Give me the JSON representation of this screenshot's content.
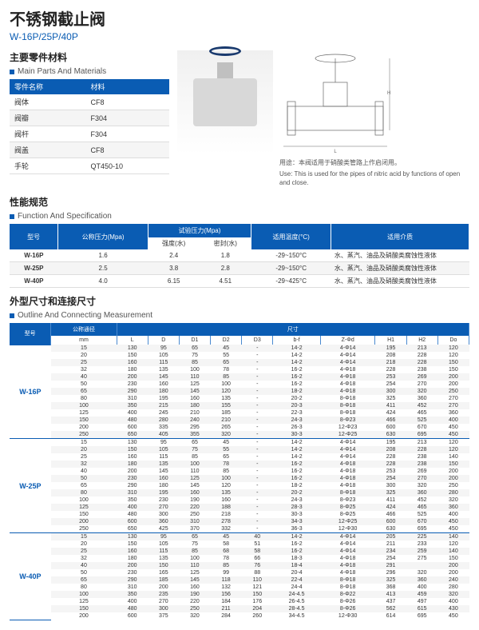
{
  "title_cn": "不锈钢截止阀",
  "title_en": "W-16P/25P/40P",
  "sec1_cn": "主要零件材料",
  "sec1_en": "Main Parts And Materials",
  "mat_h1": "零件名称",
  "mat_h2": "材料",
  "mat": [
    [
      "阀体",
      "CF8"
    ],
    [
      "阀瓣",
      "F304"
    ],
    [
      "阀杆",
      "F304"
    ],
    [
      "阀盖",
      "CF8"
    ],
    [
      "手轮",
      "QT450-10"
    ]
  ],
  "use_cn": "用途：本阀适用于硝酸类管路上作启闭用。",
  "use_en": "Use: This is used for the pipes of nitric acid by functions of open and close.",
  "sec2_cn": "性能规范",
  "sec2_en": "Function And Specification",
  "spec_h": [
    "型号",
    "公称压力(Mpa)",
    "试验压力(Mpa)",
    "适用温度(°C)",
    "适用介质"
  ],
  "spec_sub": [
    "强度(水)",
    "密封(水)"
  ],
  "spec": [
    [
      "W-16P",
      "1.6",
      "2.4",
      "1.8",
      "-29~150°C",
      "水、蒸汽、油品及硝酸类腐蚀性液体"
    ],
    [
      "W-25P",
      "2.5",
      "3.8",
      "2.8",
      "-29~150°C",
      "水、蒸汽、油品及硝酸类腐蚀性液体"
    ],
    [
      "W-40P",
      "4.0",
      "6.15",
      "4.51",
      "-29~425°C",
      "水、蒸汽、油品及硝酸类腐蚀性液体"
    ]
  ],
  "sec3_cn": "外型尺寸和连接尺寸",
  "sec3_en": "Outline And Connecting Measurement",
  "dim_h1": "型号",
  "dim_h2": "公称通径",
  "dim_h3": "尺寸",
  "dim_sub": [
    "mm",
    "L",
    "D",
    "D1",
    "D2",
    "D3",
    "b-f",
    "Z-Φd",
    "H1",
    "H2",
    "Do"
  ],
  "groups": [
    {
      "model": "W-16P",
      "rows": [
        [
          "15",
          "130",
          "95",
          "65",
          "45",
          "-",
          "14-2",
          "4-Φ14",
          "195",
          "213",
          "120"
        ],
        [
          "20",
          "150",
          "105",
          "75",
          "55",
          "-",
          "14-2",
          "4-Φ14",
          "208",
          "228",
          "120"
        ],
        [
          "25",
          "160",
          "115",
          "85",
          "65",
          "-",
          "14-2",
          "4-Φ14",
          "218",
          "228",
          "150"
        ],
        [
          "32",
          "180",
          "135",
          "100",
          "78",
          "-",
          "16-2",
          "4-Φ18",
          "228",
          "238",
          "150"
        ],
        [
          "40",
          "200",
          "145",
          "110",
          "85",
          "-",
          "16-2",
          "4-Φ18",
          "253",
          "269",
          "200"
        ],
        [
          "50",
          "230",
          "160",
          "125",
          "100",
          "-",
          "16-2",
          "4-Φ18",
          "254",
          "270",
          "200"
        ],
        [
          "65",
          "290",
          "180",
          "145",
          "120",
          "-",
          "18-2",
          "4-Φ18",
          "300",
          "320",
          "250"
        ],
        [
          "80",
          "310",
          "195",
          "160",
          "135",
          "-",
          "20-2",
          "8-Φ18",
          "325",
          "360",
          "270"
        ],
        [
          "100",
          "350",
          "215",
          "180",
          "155",
          "-",
          "20-3",
          "8-Φ18",
          "411",
          "452",
          "270"
        ],
        [
          "125",
          "400",
          "245",
          "210",
          "185",
          "-",
          "22-3",
          "8-Φ18",
          "424",
          "465",
          "360"
        ],
        [
          "150",
          "480",
          "280",
          "240",
          "210",
          "-",
          "24-3",
          "8-Φ23",
          "466",
          "525",
          "400"
        ],
        [
          "200",
          "600",
          "335",
          "295",
          "265",
          "-",
          "26-3",
          "12-Φ23",
          "600",
          "670",
          "450"
        ],
        [
          "250",
          "650",
          "405",
          "355",
          "320",
          "-",
          "30-3",
          "12-Φ25",
          "630",
          "695",
          "450"
        ]
      ]
    },
    {
      "model": "W-25P",
      "rows": [
        [
          "15",
          "130",
          "95",
          "65",
          "45",
          "-",
          "14-2",
          "4-Φ14",
          "195",
          "213",
          "120"
        ],
        [
          "20",
          "150",
          "105",
          "75",
          "55",
          "-",
          "14-2",
          "4-Φ14",
          "208",
          "228",
          "120"
        ],
        [
          "25",
          "160",
          "115",
          "85",
          "65",
          "-",
          "14-2",
          "4-Φ14",
          "228",
          "238",
          "140"
        ],
        [
          "32",
          "180",
          "135",
          "100",
          "78",
          "-",
          "16-2",
          "4-Φ18",
          "228",
          "238",
          "150"
        ],
        [
          "40",
          "200",
          "145",
          "110",
          "85",
          "-",
          "16-2",
          "4-Φ18",
          "253",
          "269",
          "200"
        ],
        [
          "50",
          "230",
          "160",
          "125",
          "100",
          "-",
          "16-2",
          "4-Φ18",
          "254",
          "270",
          "200"
        ],
        [
          "65",
          "290",
          "180",
          "145",
          "120",
          "-",
          "18-2",
          "4-Φ18",
          "300",
          "320",
          "250"
        ],
        [
          "80",
          "310",
          "195",
          "160",
          "135",
          "-",
          "20-2",
          "8-Φ18",
          "325",
          "360",
          "280"
        ],
        [
          "100",
          "350",
          "230",
          "190",
          "160",
          "-",
          "24-3",
          "8-Φ23",
          "411",
          "452",
          "320"
        ],
        [
          "125",
          "400",
          "270",
          "220",
          "188",
          "-",
          "28-3",
          "8-Φ25",
          "424",
          "465",
          "360"
        ],
        [
          "150",
          "480",
          "300",
          "250",
          "218",
          "-",
          "30-3",
          "8-Φ25",
          "466",
          "525",
          "400"
        ],
        [
          "200",
          "600",
          "360",
          "310",
          "278",
          "-",
          "34-3",
          "12-Φ25",
          "600",
          "670",
          "450"
        ],
        [
          "250",
          "650",
          "425",
          "370",
          "332",
          "-",
          "36-3",
          "12-Φ30",
          "630",
          "695",
          "450"
        ]
      ]
    },
    {
      "model": "W-40P",
      "rows": [
        [
          "15",
          "130",
          "95",
          "65",
          "45",
          "40",
          "14-2",
          "4-Φ14",
          "205",
          "225",
          "140"
        ],
        [
          "20",
          "150",
          "105",
          "75",
          "58",
          "51",
          "16-2",
          "4-Φ14",
          "211",
          "233",
          "120"
        ],
        [
          "25",
          "160",
          "115",
          "85",
          "68",
          "58",
          "16-2",
          "4-Φ14",
          "234",
          "259",
          "140"
        ],
        [
          "32",
          "180",
          "135",
          "100",
          "78",
          "66",
          "18-3",
          "4-Φ18",
          "254",
          "275",
          "150"
        ],
        [
          "40",
          "200",
          "150",
          "110",
          "85",
          "76",
          "18-4",
          "4-Φ18",
          "291",
          "",
          "200"
        ],
        [
          "50",
          "230",
          "165",
          "125",
          "99",
          "88",
          "20-4",
          "4-Φ18",
          "296",
          "320",
          "200"
        ],
        [
          "65",
          "290",
          "185",
          "145",
          "118",
          "110",
          "22-4",
          "8-Φ18",
          "325",
          "360",
          "240"
        ],
        [
          "80",
          "310",
          "200",
          "160",
          "132",
          "121",
          "24-4",
          "8-Φ18",
          "368",
          "400",
          "280"
        ],
        [
          "100",
          "350",
          "235",
          "190",
          "156",
          "150",
          "24-4.5",
          "8-Φ22",
          "413",
          "459",
          "320"
        ],
        [
          "125",
          "400",
          "270",
          "220",
          "184",
          "176",
          "26-4.5",
          "8-Φ26",
          "437",
          "497",
          "400"
        ],
        [
          "150",
          "480",
          "300",
          "250",
          "211",
          "204",
          "28-4.5",
          "8-Φ26",
          "562",
          "615",
          "430"
        ],
        [
          "200",
          "600",
          "375",
          "320",
          "284",
          "260",
          "34-4.5",
          "12-Φ30",
          "614",
          "695",
          "450"
        ]
      ]
    }
  ]
}
